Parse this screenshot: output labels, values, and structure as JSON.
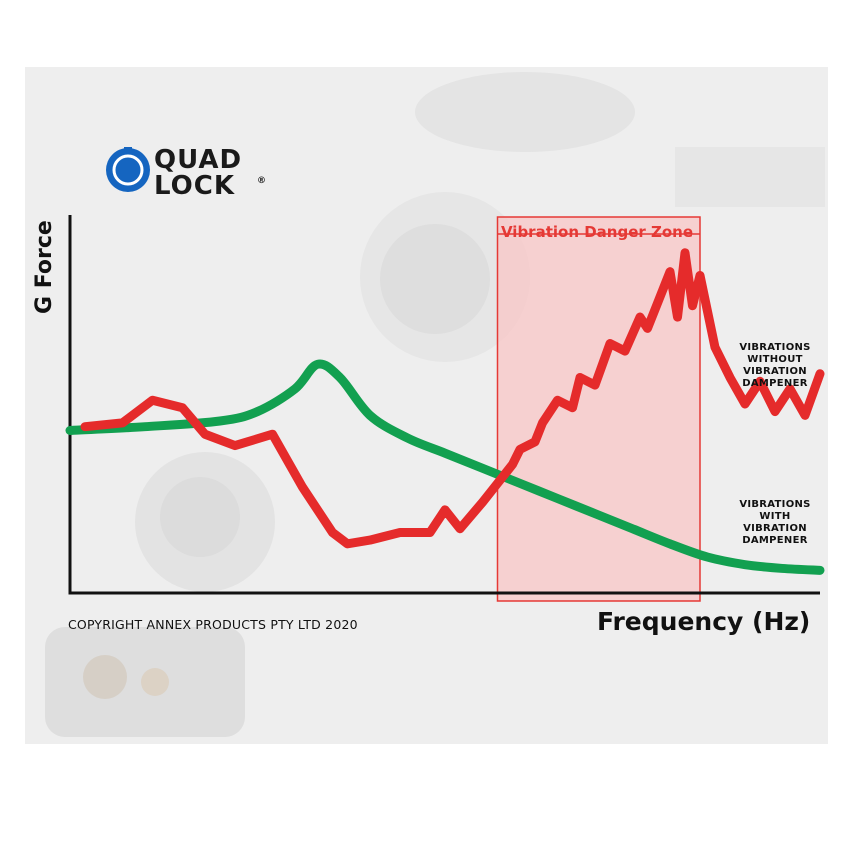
{
  "logo": {
    "line1": "QUAD",
    "line2": "LOCK",
    "reg": "®",
    "colors": {
      "blue": "#1565c0",
      "text": "#1a1a1a"
    }
  },
  "copyright": "COPYRIGHT ANNEX PRODUCTS PTY LTD 2020",
  "chart_data": {
    "type": "line",
    "title": "",
    "xlabel": "Frequency (Hz)",
    "ylabel": "G Force",
    "xlim": [
      0,
      100
    ],
    "ylim": [
      0,
      100
    ],
    "grid": false,
    "axis_ticks": false,
    "annotation": {
      "label": "Vibration Danger Zone",
      "x_range": [
        57,
        84
      ],
      "color": "#e53935",
      "fill": "#f8c6c6"
    },
    "series": [
      {
        "name": "VIBRATIONS\nWITHOUT\nVIBRATION\nDAMPENER",
        "color": "#e52b2b",
        "x": [
          2,
          7,
          11,
          15,
          18,
          22,
          27,
          31,
          35,
          37,
          40,
          44,
          48,
          50,
          52,
          55,
          57,
          59,
          60,
          62,
          63,
          65,
          67,
          68,
          70,
          72,
          74,
          76,
          77,
          78,
          80,
          81,
          82,
          83,
          84,
          86,
          88,
          90,
          92,
          94,
          96,
          98,
          100
        ],
        "y": [
          44,
          45,
          51,
          49,
          42,
          39,
          42,
          28,
          16,
          13,
          14,
          16,
          16,
          22,
          17,
          24,
          29,
          34,
          38,
          40,
          45,
          51,
          49,
          57,
          55,
          66,
          64,
          73,
          70,
          75,
          85,
          73,
          90,
          76,
          84,
          65,
          57,
          50,
          56,
          48,
          54,
          47,
          58
        ]
      },
      {
        "name": "VIBRATIONS\nWITH\nVIBRATION\nDAMPENER",
        "color": "#12a050",
        "x": [
          0,
          10,
          20,
          25,
          30,
          33,
          36,
          40,
          45,
          50,
          55,
          60,
          65,
          70,
          75,
          80,
          85,
          90,
          95,
          100
        ],
        "y": [
          43,
          44,
          45.5,
          48,
          54,
          60.5,
          57,
          47,
          41,
          37,
          33,
          29,
          25,
          21,
          17,
          13,
          9.5,
          7.5,
          6.5,
          6
        ]
      }
    ]
  }
}
